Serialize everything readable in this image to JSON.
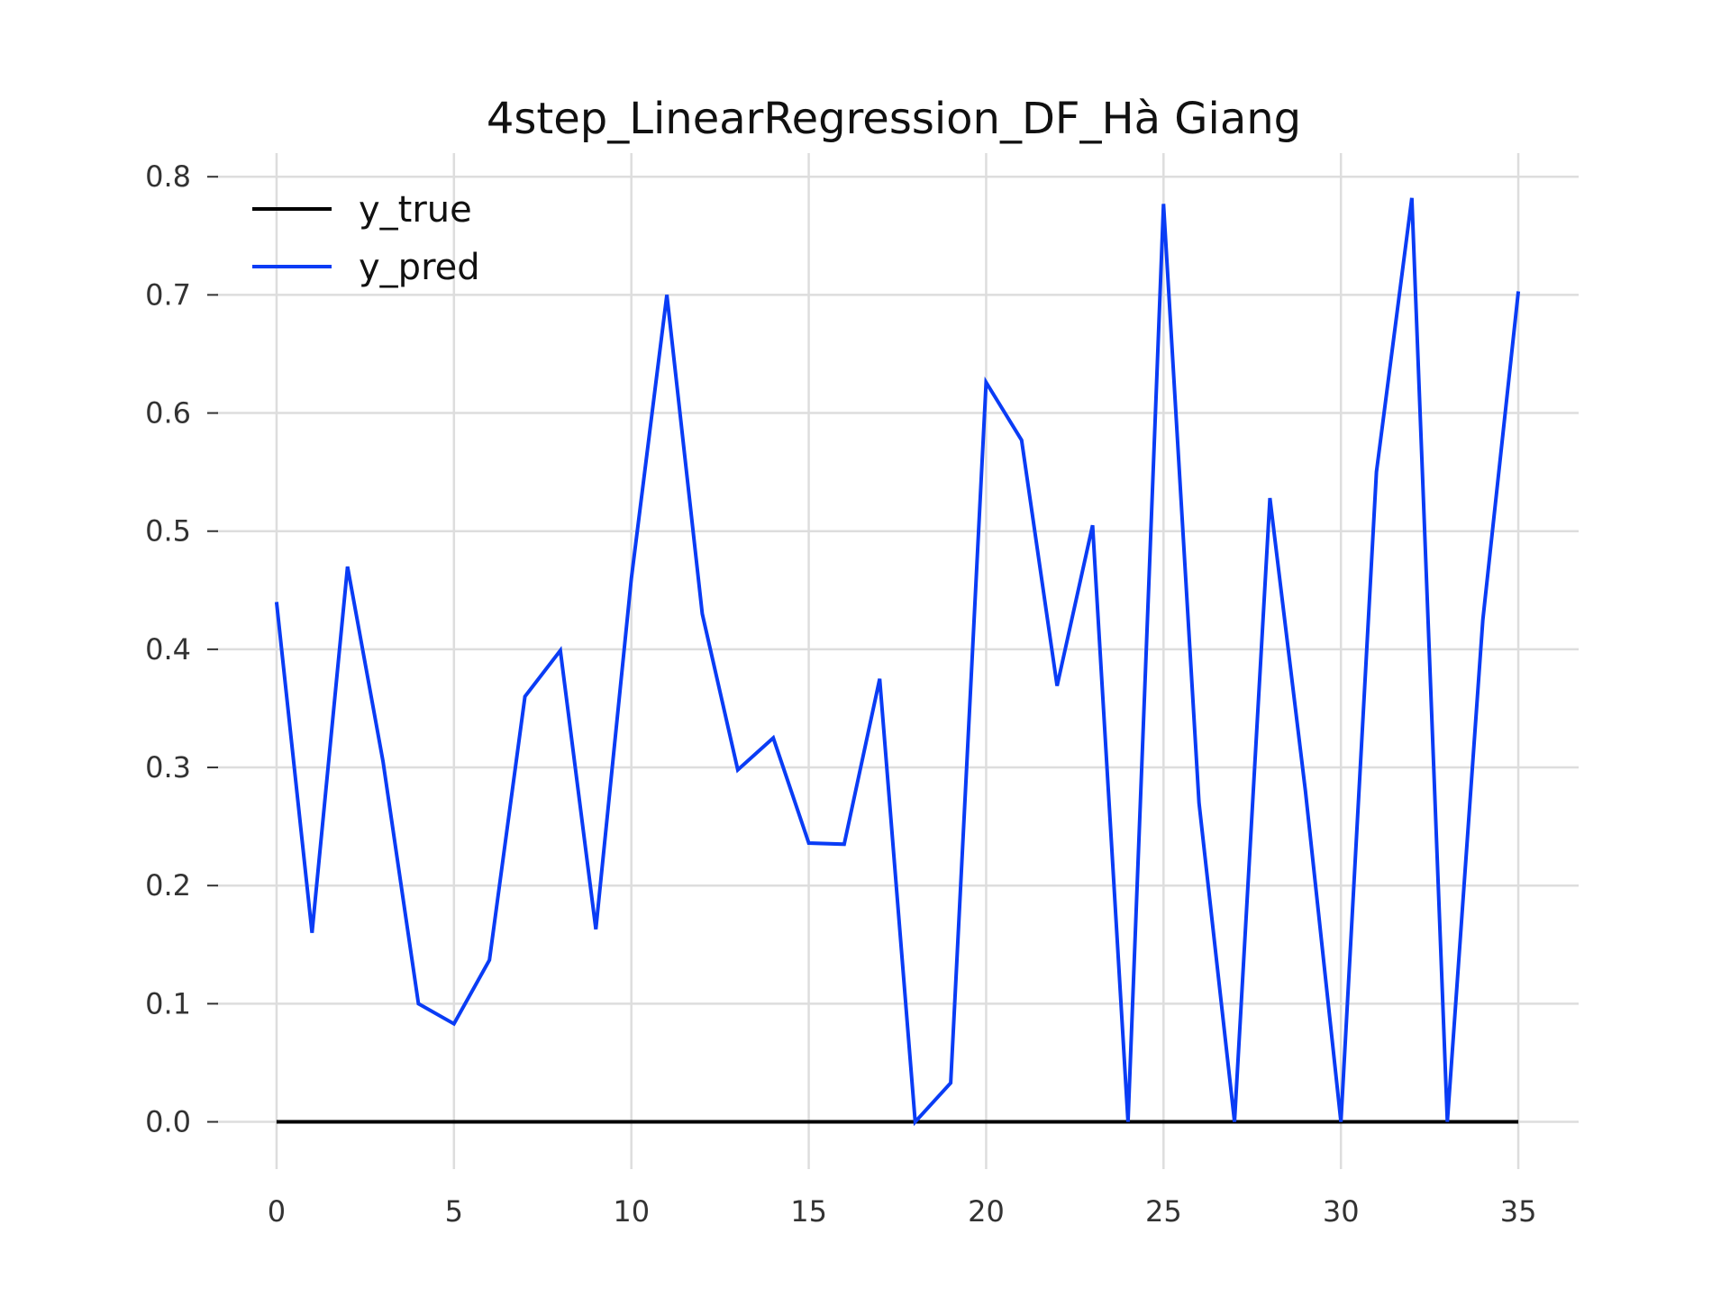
{
  "chart_data": {
    "type": "line",
    "title": "4step_LinearRegression_DF_Hà Giang",
    "xlabel": "",
    "ylabel": "",
    "xlim": [
      -1.7,
      36.7
    ],
    "ylim": [
      -0.04,
      0.82
    ],
    "xticks": [
      0,
      5,
      10,
      15,
      20,
      25,
      30,
      35
    ],
    "yticks": [
      0.0,
      0.1,
      0.2,
      0.3,
      0.4,
      0.5,
      0.6,
      0.7,
      0.8
    ],
    "grid": true,
    "legend_position": "top-left",
    "x": [
      0,
      1,
      2,
      3,
      4,
      5,
      6,
      7,
      8,
      9,
      10,
      11,
      12,
      13,
      14,
      15,
      16,
      17,
      18,
      19,
      20,
      21,
      22,
      23,
      24,
      25,
      26,
      27,
      28,
      29,
      30,
      31,
      32,
      33,
      34,
      35
    ],
    "series": [
      {
        "name": "y_true",
        "color": "#000000",
        "values": [
          0,
          0,
          0,
          0,
          0,
          0,
          0,
          0,
          0,
          0,
          0,
          0,
          0,
          0,
          0,
          0,
          0,
          0,
          0,
          0,
          0,
          0,
          0,
          0,
          0,
          0,
          0,
          0,
          0,
          0,
          0,
          0,
          0,
          0,
          0,
          0
        ]
      },
      {
        "name": "y_pred",
        "color": "#0a3cf5",
        "values": [
          0.44,
          0.16,
          0.47,
          0.305,
          0.1,
          0.083,
          0.137,
          0.36,
          0.399,
          0.163,
          0.46,
          0.7,
          0.43,
          0.298,
          0.325,
          0.236,
          0.235,
          0.375,
          0.0,
          0.033,
          0.626,
          0.577,
          0.369,
          0.505,
          0.0,
          0.777,
          0.27,
          0.0,
          0.528,
          0.28,
          0.0,
          0.55,
          0.782,
          0.0,
          0.425,
          0.703
        ]
      }
    ]
  }
}
